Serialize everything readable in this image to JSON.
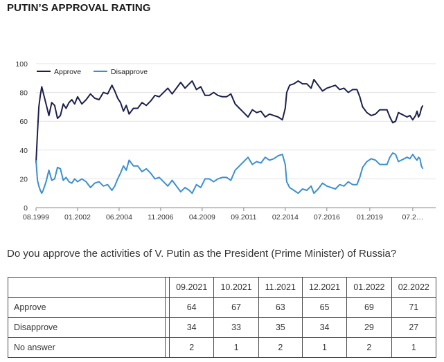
{
  "title": "PUTIN’S APPROVAL RATING",
  "question": "Do you approve the activities of V. Putin as the President (Prime Minister) of Russia?",
  "colors": {
    "approve": "#1b1f4b",
    "disapprove": "#3b8fd0",
    "grid": "#e3e3e3",
    "axis": "#888888"
  },
  "chart_data": {
    "type": "line",
    "title": "",
    "xlabel": "",
    "ylabel": "",
    "ylim": [
      0,
      100
    ],
    "yticks": [
      0,
      20,
      40,
      60,
      80,
      100
    ],
    "xlim": [
      "1999-08",
      "2022-11"
    ],
    "xticks": [
      {
        "date": "1999-08",
        "label": "08.1999"
      },
      {
        "date": "2002-01",
        "label": "01.2002"
      },
      {
        "date": "2004-06",
        "label": "06.2004"
      },
      {
        "date": "2006-11",
        "label": "11.2006"
      },
      {
        "date": "2009-04",
        "label": "04.2009"
      },
      {
        "date": "2011-09",
        "label": "09.2011"
      },
      {
        "date": "2014-02",
        "label": "02.2014"
      },
      {
        "date": "2016-07",
        "label": "07.2016"
      },
      {
        "date": "2019-01",
        "label": "01.2019"
      },
      {
        "date": "2021-07",
        "label": "07.2…"
      }
    ],
    "grid": true,
    "legend": "top-left",
    "series": [
      {
        "name": "Approve",
        "points": [
          [
            "1999-08",
            31
          ],
          [
            "1999-09",
            52
          ],
          [
            "1999-10",
            70
          ],
          [
            "1999-11",
            78
          ],
          [
            "1999-12",
            84
          ],
          [
            "2000-01",
            80
          ],
          [
            "2000-03",
            72
          ],
          [
            "2000-05",
            64
          ],
          [
            "2000-07",
            73
          ],
          [
            "2000-09",
            71
          ],
          [
            "2000-11",
            62
          ],
          [
            "2001-01",
            64
          ],
          [
            "2001-03",
            72
          ],
          [
            "2001-05",
            69
          ],
          [
            "2001-07",
            73
          ],
          [
            "2001-09",
            75
          ],
          [
            "2001-11",
            72
          ],
          [
            "2002-01",
            77
          ],
          [
            "2002-04",
            72
          ],
          [
            "2002-07",
            75
          ],
          [
            "2002-10",
            79
          ],
          [
            "2003-01",
            76
          ],
          [
            "2003-04",
            75
          ],
          [
            "2003-07",
            80
          ],
          [
            "2003-10",
            79
          ],
          [
            "2004-01",
            85
          ],
          [
            "2004-03",
            81
          ],
          [
            "2004-05",
            76
          ],
          [
            "2004-07",
            73
          ],
          [
            "2004-09",
            67
          ],
          [
            "2004-11",
            71
          ],
          [
            "2005-01",
            65
          ],
          [
            "2005-04",
            69
          ],
          [
            "2005-07",
            69
          ],
          [
            "2005-10",
            73
          ],
          [
            "2006-01",
            71
          ],
          [
            "2006-04",
            74
          ],
          [
            "2006-07",
            78
          ],
          [
            "2006-10",
            77
          ],
          [
            "2007-01",
            80
          ],
          [
            "2007-04",
            83
          ],
          [
            "2007-07",
            79
          ],
          [
            "2007-10",
            83
          ],
          [
            "2008-01",
            87
          ],
          [
            "2008-04",
            83
          ],
          [
            "2008-07",
            86
          ],
          [
            "2008-09",
            88
          ],
          [
            "2008-12",
            82
          ],
          [
            "2009-03",
            84
          ],
          [
            "2009-06",
            78
          ],
          [
            "2009-09",
            78
          ],
          [
            "2009-12",
            80
          ],
          [
            "2010-03",
            78
          ],
          [
            "2010-06",
            77
          ],
          [
            "2010-09",
            77
          ],
          [
            "2010-12",
            79
          ],
          [
            "2011-03",
            72
          ],
          [
            "2011-06",
            69
          ],
          [
            "2011-09",
            66
          ],
          [
            "2011-12",
            63
          ],
          [
            "2012-03",
            68
          ],
          [
            "2012-06",
            66
          ],
          [
            "2012-09",
            67
          ],
          [
            "2012-12",
            63
          ],
          [
            "2013-03",
            65
          ],
          [
            "2013-06",
            64
          ],
          [
            "2013-09",
            63
          ],
          [
            "2013-12",
            61
          ],
          [
            "2014-02",
            69
          ],
          [
            "2014-03",
            80
          ],
          [
            "2014-05",
            85
          ],
          [
            "2014-08",
            86
          ],
          [
            "2014-11",
            88
          ],
          [
            "2015-02",
            86
          ],
          [
            "2015-05",
            86
          ],
          [
            "2015-08",
            83
          ],
          [
            "2015-10",
            89
          ],
          [
            "2016-01",
            85
          ],
          [
            "2016-04",
            81
          ],
          [
            "2016-07",
            83
          ],
          [
            "2016-10",
            84
          ],
          [
            "2017-01",
            85
          ],
          [
            "2017-04",
            82
          ],
          [
            "2017-07",
            83
          ],
          [
            "2017-10",
            80
          ],
          [
            "2018-01",
            82
          ],
          [
            "2018-04",
            82
          ],
          [
            "2018-06",
            77
          ],
          [
            "2018-08",
            70
          ],
          [
            "2018-11",
            66
          ],
          [
            "2019-02",
            64
          ],
          [
            "2019-05",
            65
          ],
          [
            "2019-08",
            68
          ],
          [
            "2019-11",
            68
          ],
          [
            "2020-01",
            68
          ],
          [
            "2020-03",
            63
          ],
          [
            "2020-05",
            59
          ],
          [
            "2020-07",
            60
          ],
          [
            "2020-09",
            66
          ],
          [
            "2020-11",
            65
          ],
          [
            "2021-01",
            64
          ],
          [
            "2021-03",
            63
          ],
          [
            "2021-05",
            64
          ],
          [
            "2021-07",
            61
          ],
          [
            "2021-09",
            64
          ],
          [
            "2021-10",
            67
          ],
          [
            "2021-11",
            63
          ],
          [
            "2021-12",
            65
          ],
          [
            "2022-01",
            69
          ],
          [
            "2022-02",
            71
          ]
        ]
      },
      {
        "name": "Disapprove",
        "points": [
          [
            "1999-08",
            33
          ],
          [
            "1999-09",
            19
          ],
          [
            "1999-10",
            15
          ],
          [
            "1999-11",
            12
          ],
          [
            "1999-12",
            10
          ],
          [
            "2000-01",
            12
          ],
          [
            "2000-03",
            18
          ],
          [
            "2000-05",
            26
          ],
          [
            "2000-07",
            19
          ],
          [
            "2000-09",
            20
          ],
          [
            "2000-11",
            28
          ],
          [
            "2001-01",
            27
          ],
          [
            "2001-03",
            19
          ],
          [
            "2001-05",
            21
          ],
          [
            "2001-07",
            18
          ],
          [
            "2001-09",
            17
          ],
          [
            "2001-11",
            20
          ],
          [
            "2002-01",
            18
          ],
          [
            "2002-04",
            20
          ],
          [
            "2002-07",
            18
          ],
          [
            "2002-10",
            14
          ],
          [
            "2003-01",
            17
          ],
          [
            "2003-04",
            18
          ],
          [
            "2003-07",
            15
          ],
          [
            "2003-10",
            16
          ],
          [
            "2004-01",
            12
          ],
          [
            "2004-03",
            15
          ],
          [
            "2004-05",
            20
          ],
          [
            "2004-07",
            24
          ],
          [
            "2004-09",
            29
          ],
          [
            "2004-11",
            26
          ],
          [
            "2005-01",
            33
          ],
          [
            "2005-04",
            29
          ],
          [
            "2005-07",
            29
          ],
          [
            "2005-10",
            25
          ],
          [
            "2006-01",
            27
          ],
          [
            "2006-04",
            24
          ],
          [
            "2006-07",
            20
          ],
          [
            "2006-10",
            21
          ],
          [
            "2007-01",
            18
          ],
          [
            "2007-04",
            15
          ],
          [
            "2007-07",
            19
          ],
          [
            "2007-10",
            15
          ],
          [
            "2008-01",
            11
          ],
          [
            "2008-04",
            14
          ],
          [
            "2008-07",
            12
          ],
          [
            "2008-09",
            10
          ],
          [
            "2008-12",
            16
          ],
          [
            "2009-03",
            14
          ],
          [
            "2009-06",
            20
          ],
          [
            "2009-09",
            20
          ],
          [
            "2009-12",
            18
          ],
          [
            "2010-03",
            20
          ],
          [
            "2010-06",
            21
          ],
          [
            "2010-09",
            21
          ],
          [
            "2010-12",
            19
          ],
          [
            "2011-03",
            26
          ],
          [
            "2011-06",
            29
          ],
          [
            "2011-09",
            32
          ],
          [
            "2011-12",
            35
          ],
          [
            "2012-03",
            30
          ],
          [
            "2012-06",
            32
          ],
          [
            "2012-09",
            31
          ],
          [
            "2012-12",
            35
          ],
          [
            "2013-03",
            33
          ],
          [
            "2013-06",
            34
          ],
          [
            "2013-09",
            36
          ],
          [
            "2013-12",
            37
          ],
          [
            "2014-02",
            30
          ],
          [
            "2014-03",
            18
          ],
          [
            "2014-05",
            14
          ],
          [
            "2014-08",
            12
          ],
          [
            "2014-11",
            10
          ],
          [
            "2015-02",
            13
          ],
          [
            "2015-05",
            12
          ],
          [
            "2015-08",
            15
          ],
          [
            "2015-10",
            10
          ],
          [
            "2016-01",
            13
          ],
          [
            "2016-04",
            17
          ],
          [
            "2016-07",
            15
          ],
          [
            "2016-10",
            14
          ],
          [
            "2017-01",
            13
          ],
          [
            "2017-04",
            16
          ],
          [
            "2017-07",
            15
          ],
          [
            "2017-10",
            18
          ],
          [
            "2018-01",
            16
          ],
          [
            "2018-04",
            16
          ],
          [
            "2018-06",
            21
          ],
          [
            "2018-08",
            28
          ],
          [
            "2018-11",
            32
          ],
          [
            "2019-02",
            34
          ],
          [
            "2019-05",
            33
          ],
          [
            "2019-08",
            30
          ],
          [
            "2019-11",
            30
          ],
          [
            "2020-01",
            30
          ],
          [
            "2020-03",
            35
          ],
          [
            "2020-05",
            38
          ],
          [
            "2020-07",
            37
          ],
          [
            "2020-09",
            32
          ],
          [
            "2020-11",
            33
          ],
          [
            "2021-01",
            34
          ],
          [
            "2021-03",
            35
          ],
          [
            "2021-05",
            34
          ],
          [
            "2021-07",
            37
          ],
          [
            "2021-09",
            34
          ],
          [
            "2021-10",
            33
          ],
          [
            "2021-11",
            35
          ],
          [
            "2021-12",
            34
          ],
          [
            "2022-01",
            29
          ],
          [
            "2022-02",
            27
          ]
        ]
      }
    ]
  },
  "table": {
    "columns": [
      "09.2021",
      "10.2021",
      "11.2021",
      "12.2021",
      "01.2022",
      "02.2022"
    ],
    "rows": [
      {
        "label": "Approve",
        "values": [
          "64",
          "67",
          "63",
          "65",
          "69",
          "71"
        ]
      },
      {
        "label": "Disapprove",
        "values": [
          "34",
          "33",
          "35",
          "34",
          "29",
          "27"
        ]
      },
      {
        "label": "No answer",
        "values": [
          "2",
          "1",
          "2",
          "1",
          "2",
          "1"
        ]
      }
    ]
  }
}
